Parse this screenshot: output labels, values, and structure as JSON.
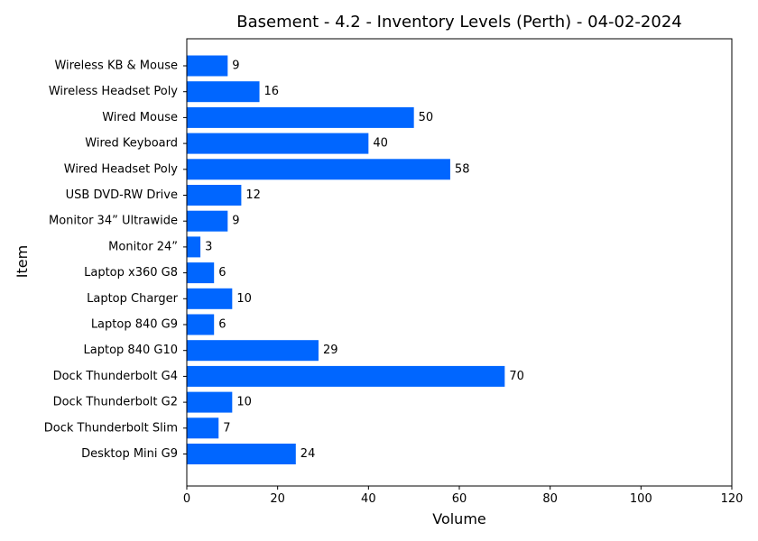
{
  "chart_data": {
    "type": "bar",
    "orientation": "horizontal",
    "title": "Basement - 4.2 - Inventory Levels (Perth) - 04-02-2024",
    "xlabel": "Volume",
    "ylabel": "Item",
    "xlim": [
      0,
      120
    ],
    "xticks": [
      0,
      20,
      40,
      60,
      80,
      100,
      120
    ],
    "grid": false,
    "bar_color": "#0066ff",
    "categories": [
      "Desktop Mini G9",
      "Dock Thunderbolt Slim",
      "Dock Thunderbolt G2",
      "Dock Thunderbolt G4",
      "Laptop 840 G10",
      "Laptop 840 G9",
      "Laptop Charger ",
      "Laptop x360 G8",
      "Monitor 24” ",
      "Monitor 34” Ultrawide",
      "USB DVD-RW Drive",
      "Wired Headset Poly",
      "Wired Keyboard",
      "Wired Mouse",
      "Wireless Headset Poly ",
      "Wireless KB & Mouse"
    ],
    "values": [
      24,
      7,
      10,
      70,
      29,
      6,
      10,
      6,
      3,
      9,
      12,
      58,
      40,
      50,
      16,
      9
    ]
  }
}
